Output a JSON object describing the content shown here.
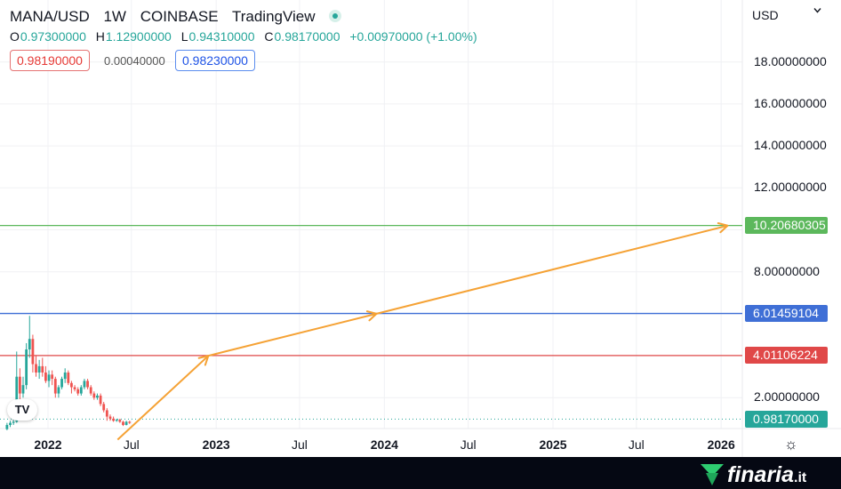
{
  "header": {
    "symbol": "MANA/USD",
    "interval": "1W",
    "exchange": "COINBASE",
    "source": "TradingView"
  },
  "ohlc": {
    "o_label": "O",
    "o_value": "0.97300000",
    "h_label": "H",
    "h_value": "1.12900000",
    "l_label": "L",
    "l_value": "0.94310000",
    "c_label": "C",
    "c_value": "0.98170000",
    "change": "+0.00970000 (+1.00%)"
  },
  "order": {
    "sell_price": "0.98190000",
    "spread": "0.00040000",
    "buy_price": "0.98230000"
  },
  "currency": "USD",
  "colors": {
    "up": "#26a69a",
    "down": "#ef5350",
    "green_level": "#5cb85c",
    "blue_level": "#3f6fd6",
    "red_level": "#e04848",
    "arrow": "#f5a235"
  },
  "icons": [
    "live-status-icon",
    "chevron-down-icon",
    "tradingview-logo-icon",
    "gear-icon",
    "finaria-logo-icon"
  ],
  "footer": {
    "brand": "finaria",
    "brand_suffix": ".it"
  },
  "chart_data": {
    "type": "candlestick",
    "title": "",
    "ylim": [
      0,
      19.5
    ],
    "y_ticks": [
      2,
      4,
      6,
      8,
      10,
      12,
      14,
      16,
      18
    ],
    "y_tick_labels": [
      "2.00000000",
      "4.00000000",
      "6.00000000",
      "8.00000000",
      "10.00000000",
      "12.00000000",
      "14.00000000",
      "16.00000000",
      "18.00000000"
    ],
    "x_ticks": [
      "2022",
      "Jul",
      "2023",
      "Jul",
      "2024",
      "Jul",
      "2025",
      "Jul",
      "2026"
    ],
    "x_ticks_bold": [
      true,
      false,
      true,
      false,
      true,
      false,
      true,
      false,
      true
    ],
    "grid": true,
    "horizontal_levels": [
      {
        "name": "green",
        "value": 10.20680305,
        "label": "10.20680305",
        "color": "#5cb85c"
      },
      {
        "name": "blue",
        "value": 6.01459104,
        "label": "6.01459104",
        "color": "#3f6fd6"
      },
      {
        "name": "red",
        "value": 4.01106224,
        "label": "4.01106224",
        "color": "#e04848"
      }
    ],
    "current_price": {
      "value": 0.9817,
      "label": "0.98170000",
      "color": "#26a69a"
    },
    "projection_path": [
      {
        "x": "2022-06-01",
        "y": 0.0
      },
      {
        "x": "2022-12-15",
        "y": 4.0
      },
      {
        "x": "2023-12-15",
        "y": 6.0
      },
      {
        "x": "2026-01-15",
        "y": 10.2
      }
    ],
    "candles": [
      {
        "x": "2021-10-04",
        "o": 0.5,
        "h": 0.8,
        "l": 0.45,
        "c": 0.7
      },
      {
        "x": "2021-10-11",
        "o": 0.7,
        "h": 0.9,
        "l": 0.6,
        "c": 0.8
      },
      {
        "x": "2021-10-18",
        "o": 0.8,
        "h": 0.95,
        "l": 0.7,
        "c": 0.85
      },
      {
        "x": "2021-10-25",
        "o": 0.85,
        "h": 4.2,
        "l": 0.8,
        "c": 3.0
      },
      {
        "x": "2021-11-01",
        "o": 3.0,
        "h": 3.4,
        "l": 1.6,
        "c": 2.2
      },
      {
        "x": "2021-11-08",
        "o": 2.2,
        "h": 3.0,
        "l": 2.0,
        "c": 2.6
      },
      {
        "x": "2021-11-15",
        "o": 2.6,
        "h": 4.6,
        "l": 2.4,
        "c": 4.3
      },
      {
        "x": "2021-11-22",
        "o": 4.3,
        "h": 5.9,
        "l": 3.9,
        "c": 4.8
      },
      {
        "x": "2021-11-29",
        "o": 4.8,
        "h": 5.0,
        "l": 3.2,
        "c": 3.6
      },
      {
        "x": "2021-12-06",
        "o": 3.6,
        "h": 4.0,
        "l": 3.0,
        "c": 3.2
      },
      {
        "x": "2021-12-13",
        "o": 3.2,
        "h": 3.8,
        "l": 2.9,
        "c": 3.5
      },
      {
        "x": "2021-12-20",
        "o": 3.5,
        "h": 3.9,
        "l": 3.0,
        "c": 3.2
      },
      {
        "x": "2021-12-27",
        "o": 3.2,
        "h": 3.5,
        "l": 2.7,
        "c": 2.8
      },
      {
        "x": "2022-01-03",
        "o": 2.8,
        "h": 3.3,
        "l": 2.5,
        "c": 3.1
      },
      {
        "x": "2022-01-10",
        "o": 3.1,
        "h": 3.3,
        "l": 2.6,
        "c": 2.9
      },
      {
        "x": "2022-01-17",
        "o": 2.9,
        "h": 3.0,
        "l": 2.0,
        "c": 2.2
      },
      {
        "x": "2022-01-24",
        "o": 2.2,
        "h": 2.6,
        "l": 2.0,
        "c": 2.5
      },
      {
        "x": "2022-01-31",
        "o": 2.5,
        "h": 3.0,
        "l": 2.4,
        "c": 2.9
      },
      {
        "x": "2022-02-07",
        "o": 2.9,
        "h": 3.4,
        "l": 2.7,
        "c": 3.2
      },
      {
        "x": "2022-02-14",
        "o": 3.2,
        "h": 3.3,
        "l": 2.6,
        "c": 2.7
      },
      {
        "x": "2022-02-21",
        "o": 2.7,
        "h": 2.8,
        "l": 2.2,
        "c": 2.5
      },
      {
        "x": "2022-02-28",
        "o": 2.5,
        "h": 2.6,
        "l": 2.3,
        "c": 2.4
      },
      {
        "x": "2022-03-07",
        "o": 2.4,
        "h": 2.5,
        "l": 2.1,
        "c": 2.2
      },
      {
        "x": "2022-03-14",
        "o": 2.2,
        "h": 2.6,
        "l": 2.1,
        "c": 2.5
      },
      {
        "x": "2022-03-21",
        "o": 2.5,
        "h": 2.9,
        "l": 2.4,
        "c": 2.8
      },
      {
        "x": "2022-03-28",
        "o": 2.8,
        "h": 2.9,
        "l": 2.4,
        "c": 2.5
      },
      {
        "x": "2022-04-04",
        "o": 2.5,
        "h": 2.6,
        "l": 2.1,
        "c": 2.2
      },
      {
        "x": "2022-04-11",
        "o": 2.2,
        "h": 2.3,
        "l": 1.9,
        "c": 2.0
      },
      {
        "x": "2022-04-18",
        "o": 2.0,
        "h": 2.2,
        "l": 1.9,
        "c": 2.1
      },
      {
        "x": "2022-04-25",
        "o": 2.1,
        "h": 2.2,
        "l": 1.6,
        "c": 1.7
      },
      {
        "x": "2022-05-02",
        "o": 1.7,
        "h": 1.8,
        "l": 1.3,
        "c": 1.4
      },
      {
        "x": "2022-05-09",
        "o": 1.4,
        "h": 1.5,
        "l": 0.9,
        "c": 1.1
      },
      {
        "x": "2022-05-16",
        "o": 1.1,
        "h": 1.2,
        "l": 0.9,
        "c": 1.0
      },
      {
        "x": "2022-05-23",
        "o": 1.0,
        "h": 1.1,
        "l": 0.85,
        "c": 0.9
      },
      {
        "x": "2022-05-30",
        "o": 0.9,
        "h": 1.0,
        "l": 0.85,
        "c": 0.95
      },
      {
        "x": "2022-06-06",
        "o": 0.95,
        "h": 1.0,
        "l": 0.8,
        "c": 0.85
      },
      {
        "x": "2022-06-13",
        "o": 0.85,
        "h": 0.9,
        "l": 0.65,
        "c": 0.7
      },
      {
        "x": "2022-06-20",
        "o": 0.7,
        "h": 0.9,
        "l": 0.68,
        "c": 0.85
      },
      {
        "x": "2022-06-27",
        "o": 0.85,
        "h": 0.9,
        "l": 0.75,
        "c": 0.8
      }
    ]
  }
}
